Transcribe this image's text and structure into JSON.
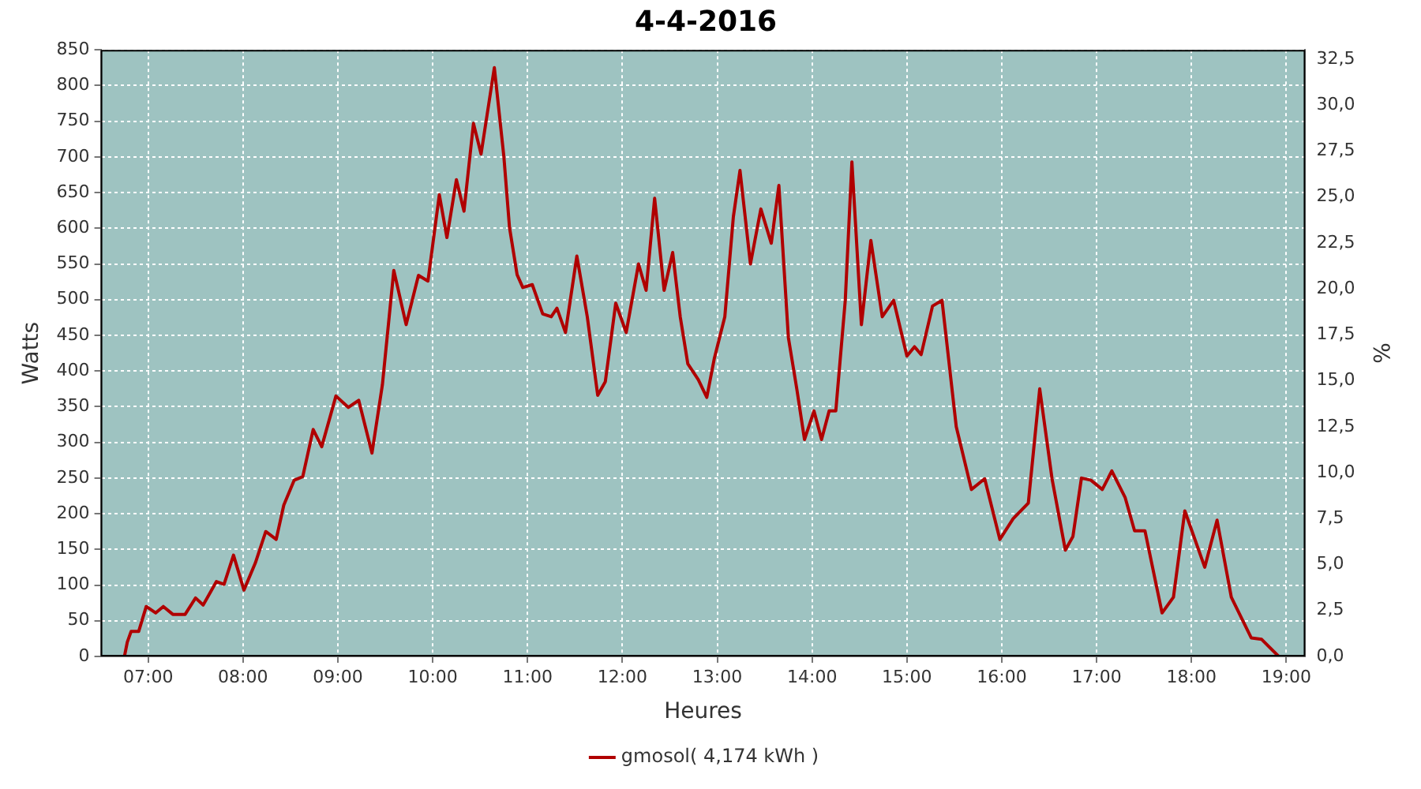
{
  "chart_data": {
    "type": "line",
    "title": "4-4-2016",
    "xlabel": "Heures",
    "ylabel": "Watts",
    "y2label": "%",
    "xlim": [
      6.5,
      19.2
    ],
    "xticks": [
      {
        "value": 7,
        "label": "07:00"
      },
      {
        "value": 8,
        "label": "08:00"
      },
      {
        "value": 9,
        "label": "09:00"
      },
      {
        "value": 10,
        "label": "10:00"
      },
      {
        "value": 11,
        "label": "11:00"
      },
      {
        "value": 12,
        "label": "12:00"
      },
      {
        "value": 13,
        "label": "13:00"
      },
      {
        "value": 14,
        "label": "14:00"
      },
      {
        "value": 15,
        "label": "15:00"
      },
      {
        "value": 16,
        "label": "16:00"
      },
      {
        "value": 17,
        "label": "17:00"
      },
      {
        "value": 18,
        "label": "18:00"
      },
      {
        "value": 19,
        "label": "19:00"
      }
    ],
    "ylim": [
      0,
      850
    ],
    "yticks": [
      0,
      50,
      100,
      150,
      200,
      250,
      300,
      350,
      400,
      450,
      500,
      550,
      600,
      650,
      700,
      750,
      800,
      850
    ],
    "y2lim": [
      0,
      33
    ],
    "y2ticks": [
      {
        "value": 0,
        "label": "0,0"
      },
      {
        "value": 2.5,
        "label": "2,5"
      },
      {
        "value": 5,
        "label": "5,0"
      },
      {
        "value": 7.5,
        "label": "7,5"
      },
      {
        "value": 10,
        "label": "10,0"
      },
      {
        "value": 12.5,
        "label": "12,5"
      },
      {
        "value": 15,
        "label": "15,0"
      },
      {
        "value": 17.5,
        "label": "17,5"
      },
      {
        "value": 20,
        "label": "20,0"
      },
      {
        "value": 22.5,
        "label": "22,5"
      },
      {
        "value": 25,
        "label": "25,0"
      },
      {
        "value": 27.5,
        "label": "27,5"
      },
      {
        "value": 30,
        "label": "30,0"
      },
      {
        "value": 32.5,
        "label": "32,5"
      }
    ],
    "grid": true,
    "legend": "bottom",
    "marker": "none",
    "line_style": "solid",
    "series": [
      {
        "name": "gmosol( 4,174 kWh )",
        "color": "#b00000",
        "x": [
          6.75,
          6.78,
          6.82,
          6.9,
          6.98,
          7.08,
          7.16,
          7.26,
          7.39,
          7.5,
          7.58,
          7.72,
          7.8,
          7.9,
          8.01,
          8.13,
          8.24,
          8.35,
          8.43,
          8.54,
          8.63,
          8.74,
          8.83,
          8.98,
          9.11,
          9.22,
          9.36,
          9.47,
          9.59,
          9.72,
          9.85,
          9.95,
          10.07,
          10.15,
          10.25,
          10.33,
          10.43,
          10.51,
          10.65,
          10.75,
          10.81,
          10.89,
          10.95,
          11.05,
          11.16,
          11.25,
          11.31,
          11.4,
          11.52,
          11.63,
          11.74,
          11.82,
          11.93,
          12.04,
          12.17,
          12.25,
          12.34,
          12.44,
          12.53,
          12.61,
          12.69,
          12.8,
          12.89,
          12.97,
          13.08,
          13.17,
          13.24,
          13.35,
          13.46,
          13.57,
          13.65,
          13.75,
          13.84,
          13.92,
          14.02,
          14.1,
          14.18,
          14.25,
          14.35,
          14.42,
          14.52,
          14.62,
          14.74,
          14.86,
          15,
          15.08,
          15.15,
          15.27,
          15.37,
          15.52,
          15.68,
          15.82,
          15.98,
          16.12,
          16.28,
          16.4,
          16.53,
          16.67,
          16.75,
          16.84,
          16.94,
          17.06,
          17.16,
          17.3,
          17.4,
          17.51,
          17.69,
          17.81,
          17.93,
          18.14,
          18.27,
          18.42,
          18.63,
          18.74,
          18.92
        ],
        "values": [
          0,
          20,
          35,
          35,
          70,
          61,
          70,
          59,
          59,
          82,
          72,
          105,
          101,
          142,
          93,
          131,
          175,
          164,
          212,
          247,
          252,
          318,
          294,
          365,
          349,
          359,
          285,
          381,
          541,
          465,
          534,
          526,
          647,
          587,
          668,
          624,
          747,
          704,
          825,
          701,
          601,
          535,
          517,
          521,
          480,
          476,
          488,
          454,
          561,
          476,
          366,
          385,
          495,
          454,
          550,
          513,
          642,
          513,
          566,
          476,
          410,
          388,
          363,
          418,
          476,
          616,
          681,
          550,
          627,
          579,
          660,
          447,
          374,
          304,
          344,
          304,
          344,
          344,
          499,
          693,
          465,
          583,
          476,
          499,
          421,
          434,
          423,
          491,
          499,
          322,
          234,
          249,
          164,
          193,
          215,
          375,
          249,
          149,
          168,
          250,
          247,
          234,
          260,
          223,
          176,
          176,
          61,
          83,
          204,
          125,
          191,
          83,
          26,
          24,
          0
        ]
      }
    ]
  }
}
